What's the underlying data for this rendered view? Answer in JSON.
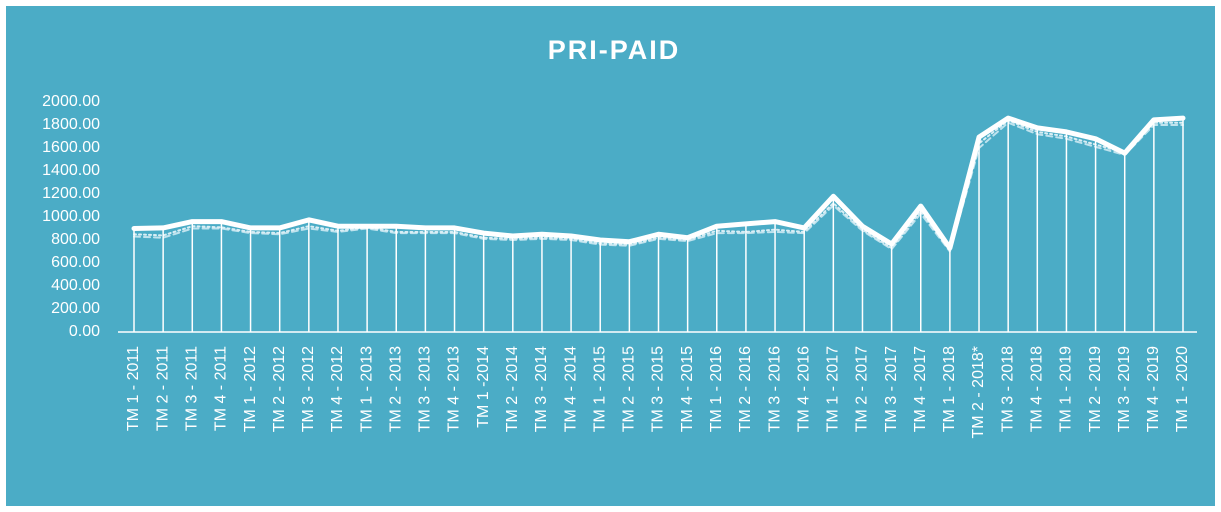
{
  "chart_data": {
    "type": "line",
    "title": "PRI-PAID",
    "categories": [
      "TM 1 - 2011",
      "TM 2 - 2011",
      "TM 3 - 2011",
      "TM 4 - 2011",
      "TM 1 - 2012",
      "TM 2 - 2012",
      "TM 3 - 2012",
      "TM 4 - 2012",
      "TM 1 - 2013",
      "TM 2 - 2013",
      "TM 3 - 2013",
      "TM 4 - 2013",
      "TM 1 -2014",
      "TM 2 - 2014",
      "TM 3 - 2014",
      "TM 4 - 2014",
      "TM 1 - 2015",
      "TM 2 - 2015",
      "TM 3 - 2015",
      "TM 4 - 2015",
      "TM 1 - 2016",
      "TM 2 - 2016",
      "TM 3 - 2016",
      "TM 4 - 2016",
      "TM 1 - 2017",
      "TM 2 - 2017",
      "TM 3 - 2017",
      "TM 4 - 2017",
      "TM 1 - 2018",
      "TM 2 - 2018*",
      "TM 3 - 2018",
      "TM 4 - 2018",
      "TM 1 - 2019",
      "TM 2 - 2019",
      "TM 3 - 2019",
      "TM 4 - 2019",
      "TM 1 - 2020"
    ],
    "series": [
      {
        "color": "#bfe3ee",
        "dash": "6 4",
        "values": [
          830,
          820,
          900,
          900,
          860,
          850,
          900,
          870,
          900,
          860,
          860,
          860,
          810,
          800,
          810,
          800,
          760,
          750,
          810,
          790,
          860,
          860,
          870,
          860,
          1100,
          880,
          720,
          1030,
          700,
          1600,
          1820,
          1720,
          1680,
          1610,
          1540,
          1800,
          1800
        ]
      },
      {
        "color": "#d9eef5",
        "dash": "2 3",
        "values": [
          850,
          840,
          920,
          910,
          870,
          860,
          920,
          880,
          910,
          870,
          870,
          870,
          820,
          810,
          820,
          810,
          770,
          760,
          820,
          800,
          880,
          870,
          890,
          870,
          1120,
          890,
          730,
          1050,
          710,
          1640,
          1840,
          1740,
          1700,
          1630,
          1560,
          1820,
          1820
        ]
      },
      {
        "color": "#ffffff",
        "drop": true,
        "width": 5,
        "values": [
          900,
          905,
          960,
          960,
          905,
          905,
          975,
          920,
          920,
          920,
          905,
          905,
          860,
          835,
          850,
          835,
          800,
          785,
          850,
          820,
          920,
          940,
          960,
          905,
          1180,
          920,
          765,
          1095,
          730,
          1695,
          1860,
          1775,
          1740,
          1680,
          1555,
          1845,
          1860
        ]
      }
    ],
    "ylim": [
      0,
      2000
    ],
    "yticks": [
      {
        "value": 0,
        "label": "0.00"
      },
      {
        "value": 200,
        "label": "200.00"
      },
      {
        "value": 400,
        "label": "400.00"
      },
      {
        "value": 600,
        "label": "600.00"
      },
      {
        "value": 800,
        "label": "800.00"
      },
      {
        "value": 1000,
        "label": "1000.00"
      },
      {
        "value": 1200,
        "label": "1200.00"
      },
      {
        "value": 1400,
        "label": "1400.00"
      },
      {
        "value": 1600,
        "label": "1600.00"
      },
      {
        "value": 1800,
        "label": "1800.00"
      },
      {
        "value": 2000,
        "label": "2000.00"
      }
    ]
  }
}
